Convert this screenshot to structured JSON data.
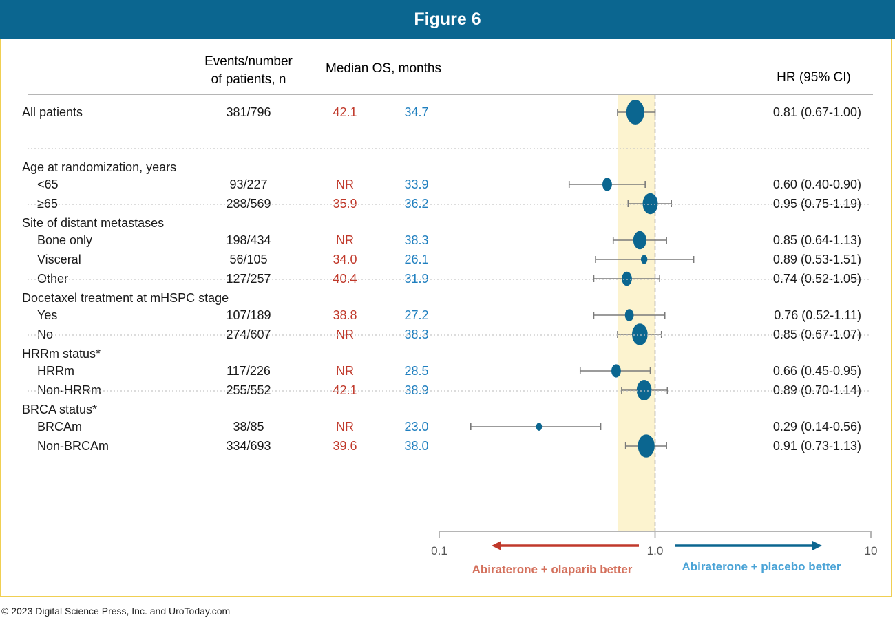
{
  "figure_title": "Figure 6",
  "copyright": "© 2023 Digital Science Press, Inc. and UroToday.com",
  "columns": {
    "events_line1": "Events/number",
    "events_line2": "of patients, n",
    "median_os": "Median OS, months",
    "hr": "HR (95% CI)"
  },
  "colors": {
    "olaparib": "#c0392b",
    "placebo": "#1f7fbf",
    "marker": "#0b6690",
    "band": "#fcf3cf",
    "frame": "#f0cf52",
    "title_bar": "#0b6690"
  },
  "legend": {
    "left": "Abiraterone + olaparib better",
    "right": "Abiraterone + placebo better"
  },
  "chart_data": {
    "type": "forest",
    "x_scale": "log",
    "xlim": [
      0.1,
      10
    ],
    "x_ticks": [
      "0.1",
      "1.0",
      "10"
    ],
    "reference_line": 1.0,
    "shaded_band": [
      0.67,
      1.0
    ],
    "rows": [
      {
        "kind": "subgroup",
        "label": "All patients",
        "events": "381/796",
        "mos_a": "42.1",
        "mos_b": "34.7",
        "hr": 0.81,
        "lo": 0.67,
        "hi": 1.0,
        "hr_text": "0.81 (0.67-1.00)",
        "weight": 796
      },
      {
        "kind": "header",
        "label": "Age at randomization, years"
      },
      {
        "kind": "subgroup",
        "label": "<65",
        "events": "93/227",
        "mos_a": "NR",
        "mos_b": "33.9",
        "hr": 0.6,
        "lo": 0.4,
        "hi": 0.9,
        "hr_text": "0.60 (0.40-0.90)",
        "weight": 227
      },
      {
        "kind": "subgroup",
        "label": "≥65",
        "events": "288/569",
        "mos_a": "35.9",
        "mos_b": "36.2",
        "hr": 0.95,
        "lo": 0.75,
        "hi": 1.19,
        "hr_text": "0.95 (0.75-1.19)",
        "weight": 569
      },
      {
        "kind": "header",
        "label": "Site of distant metastases"
      },
      {
        "kind": "subgroup",
        "label": "Bone only",
        "events": "198/434",
        "mos_a": "NR",
        "mos_b": "38.3",
        "hr": 0.85,
        "lo": 0.64,
        "hi": 1.13,
        "hr_text": "0.85 (0.64-1.13)",
        "weight": 434
      },
      {
        "kind": "subgroup",
        "label": "Visceral",
        "events": "56/105",
        "mos_a": "34.0",
        "mos_b": "26.1",
        "hr": 0.89,
        "lo": 0.53,
        "hi": 1.51,
        "hr_text": "0.89 (0.53-1.51)",
        "weight": 105
      },
      {
        "kind": "subgroup",
        "label": "Other",
        "events": "127/257",
        "mos_a": "40.4",
        "mos_b": "31.9",
        "hr": 0.74,
        "lo": 0.52,
        "hi": 1.05,
        "hr_text": "0.74 (0.52-1.05)",
        "weight": 257
      },
      {
        "kind": "header",
        "label": "Docetaxel treatment at mHSPC stage"
      },
      {
        "kind": "subgroup",
        "label": "Yes",
        "events": "107/189",
        "mos_a": "38.8",
        "mos_b": "27.2",
        "hr": 0.76,
        "lo": 0.52,
        "hi": 1.11,
        "hr_text": "0.76 (0.52-1.11)",
        "weight": 189
      },
      {
        "kind": "subgroup",
        "label": "No",
        "events": "274/607",
        "mos_a": "NR",
        "mos_b": "38.3",
        "hr": 0.85,
        "lo": 0.67,
        "hi": 1.07,
        "hr_text": "0.85 (0.67-1.07)",
        "weight": 607
      },
      {
        "kind": "header",
        "label": "HRRm status*"
      },
      {
        "kind": "subgroup",
        "label": "HRRm",
        "events": "117/226",
        "mos_a": "NR",
        "mos_b": "28.5",
        "hr": 0.66,
        "lo": 0.45,
        "hi": 0.95,
        "hr_text": "0.66 (0.45-0.95)",
        "weight": 226
      },
      {
        "kind": "subgroup",
        "label": "Non-HRRm",
        "events": "255/552",
        "mos_a": "42.1",
        "mos_b": "38.9",
        "hr": 0.89,
        "lo": 0.7,
        "hi": 1.14,
        "hr_text": "0.89 (0.70-1.14)",
        "weight": 552
      },
      {
        "kind": "header",
        "label": "BRCA status*"
      },
      {
        "kind": "subgroup",
        "label": "BRCAm",
        "events": "38/85",
        "mos_a": "NR",
        "mos_b": "23.0",
        "hr": 0.29,
        "lo": 0.14,
        "hi": 0.56,
        "hr_text": "0.29 (0.14-0.56)",
        "weight": 85
      },
      {
        "kind": "subgroup",
        "label": "Non-BRCAm",
        "events": "334/693",
        "mos_a": "39.6",
        "mos_b": "38.0",
        "hr": 0.91,
        "lo": 0.73,
        "hi": 1.13,
        "hr_text": "0.91 (0.73-1.13)",
        "weight": 693
      }
    ]
  }
}
